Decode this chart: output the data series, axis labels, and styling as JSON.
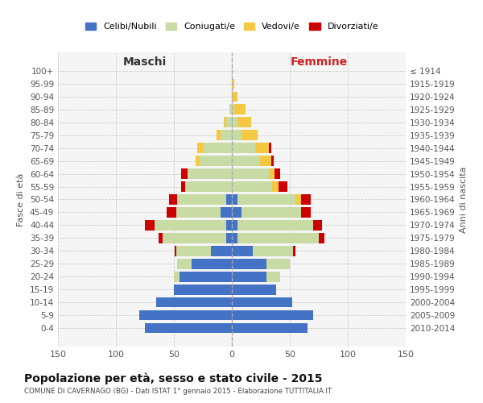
{
  "age_groups": [
    "100+",
    "95-99",
    "90-94",
    "85-89",
    "80-84",
    "75-79",
    "70-74",
    "65-69",
    "60-64",
    "55-59",
    "50-54",
    "45-49",
    "40-44",
    "35-39",
    "30-34",
    "25-29",
    "20-24",
    "15-19",
    "10-14",
    "5-9",
    "0-4"
  ],
  "birth_years": [
    "≤ 1914",
    "1915-1919",
    "1920-1924",
    "1925-1929",
    "1930-1934",
    "1935-1939",
    "1940-1944",
    "1945-1949",
    "1950-1954",
    "1955-1959",
    "1960-1964",
    "1965-1969",
    "1970-1974",
    "1975-1979",
    "1980-1984",
    "1985-1989",
    "1990-1994",
    "1995-1999",
    "2000-2004",
    "2005-2009",
    "2010-2014"
  ],
  "male": {
    "celibi": [
      0,
      0,
      0,
      0,
      0,
      0,
      0,
      0,
      0,
      0,
      5,
      10,
      5,
      5,
      18,
      35,
      45,
      50,
      65,
      80,
      75
    ],
    "coniugati": [
      0,
      0,
      0,
      2,
      5,
      10,
      25,
      28,
      38,
      40,
      42,
      38,
      62,
      55,
      30,
      12,
      5,
      0,
      0,
      0,
      0
    ],
    "vedovi": [
      0,
      0,
      0,
      0,
      2,
      3,
      5,
      3,
      0,
      0,
      0,
      0,
      0,
      0,
      0,
      0,
      0,
      0,
      0,
      0,
      0
    ],
    "divorziati": [
      0,
      0,
      0,
      0,
      0,
      0,
      0,
      0,
      6,
      4,
      7,
      8,
      8,
      3,
      1,
      0,
      0,
      0,
      0,
      0,
      0
    ]
  },
  "female": {
    "nubili": [
      0,
      0,
      0,
      0,
      0,
      0,
      0,
      0,
      0,
      0,
      5,
      8,
      5,
      5,
      18,
      30,
      30,
      38,
      52,
      70,
      65
    ],
    "coniugate": [
      0,
      0,
      0,
      2,
      5,
      8,
      20,
      24,
      32,
      35,
      50,
      52,
      65,
      70,
      35,
      20,
      12,
      0,
      0,
      0,
      0
    ],
    "vedove": [
      0,
      2,
      5,
      10,
      12,
      14,
      12,
      10,
      5,
      5,
      5,
      0,
      0,
      0,
      0,
      0,
      0,
      0,
      0,
      0,
      0
    ],
    "divorziate": [
      0,
      0,
      0,
      0,
      0,
      0,
      2,
      2,
      5,
      8,
      8,
      8,
      8,
      5,
      2,
      0,
      0,
      0,
      0,
      0,
      0
    ]
  },
  "colors": {
    "celibi": "#4472c4",
    "coniugati": "#c8dba4",
    "vedovi": "#f5c842",
    "divorziati": "#cc0000"
  },
  "xlim": 150,
  "title": "Popolazione per età, sesso e stato civile - 2015",
  "subtitle": "COMUNE DI CAVERNAGO (BG) - Dati ISTAT 1° gennaio 2015 - Elaborazione TUTTITALIA.IT",
  "ylabel_left": "Fasce di età",
  "ylabel_right": "Anni di nascita",
  "xlabel_left": "Maschi",
  "xlabel_right": "Femmine",
  "legend_labels": [
    "Celibi/Nubili",
    "Coniugati/e",
    "Vedovi/e",
    "Divorziati/e"
  ],
  "bg_color": "#ffffff",
  "plot_bg": "#f5f5f5",
  "grid_color": "#cccccc"
}
